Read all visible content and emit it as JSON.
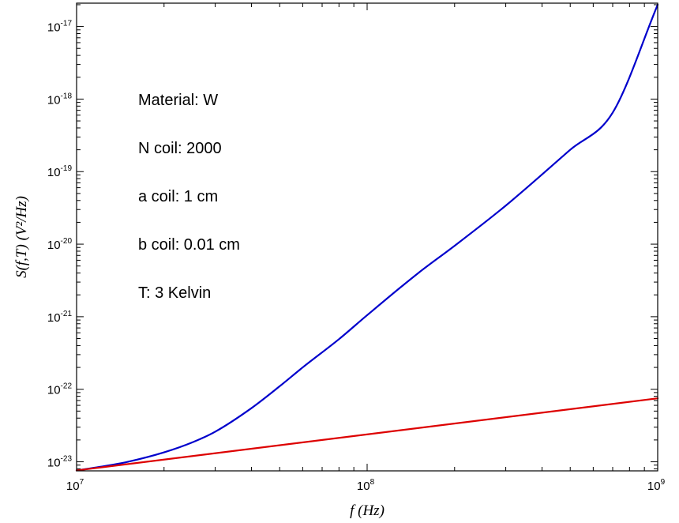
{
  "chart_data": {
    "type": "line",
    "xlabel": "f (Hz)",
    "ylabel": "S(f,T) (V²/Hz)",
    "x_scale": "log",
    "y_scale": "log",
    "xlim": [
      10000000.0,
      1000000000.0
    ],
    "ylim": [
      7.5e-24,
      2.1e-17
    ],
    "x_ticks": [
      {
        "value": 10000000.0,
        "base": "10",
        "exp": "7"
      },
      {
        "value": 100000000.0,
        "base": "10",
        "exp": "8"
      },
      {
        "value": 1000000000.0,
        "base": "10",
        "exp": "9"
      }
    ],
    "y_ticks": [
      {
        "value": 1e-23,
        "base": "10",
        "exp": "-23"
      },
      {
        "value": 1e-22,
        "base": "10",
        "exp": "-22"
      },
      {
        "value": 1e-21,
        "base": "10",
        "exp": "-21"
      },
      {
        "value": 1e-20,
        "base": "10",
        "exp": "-20"
      },
      {
        "value": 1e-19,
        "base": "10",
        "exp": "-19"
      },
      {
        "value": 1e-18,
        "base": "10",
        "exp": "-18"
      },
      {
        "value": 1e-17,
        "base": "10",
        "exp": "-17"
      }
    ],
    "grid": false,
    "annotations": [
      "Material: W",
      "N coil: 2000",
      "a coil: 1 cm",
      "b coil: 0.01 cm",
      "T: 3 Kelvin"
    ],
    "series": [
      {
        "color": "#0000cc",
        "x": [
          10000000.0,
          12000000.0,
          15000000.0,
          20000000.0,
          25000000.0,
          30000000.0,
          40000000.0,
          50000000.0,
          60000000.0,
          80000000.0,
          100000000.0,
          150000000.0,
          200000000.0,
          300000000.0,
          500000000.0,
          700000000.0,
          1000000000.0
        ],
        "y": [
          7.6e-24,
          8.5e-24,
          1e-23,
          1.35e-23,
          1.85e-23,
          2.6e-23,
          5.5e-23,
          1.1e-22,
          2e-22,
          4.9e-22,
          1.05e-21,
          4e-21,
          9.5e-21,
          3.4e-20,
          2e-19,
          6.5e-19,
          2e-17
        ]
      },
      {
        "color": "#dd0000",
        "x": [
          10000000.0,
          1000000000.0
        ],
        "y": [
          7.6e-24,
          7.5e-23
        ]
      }
    ]
  }
}
